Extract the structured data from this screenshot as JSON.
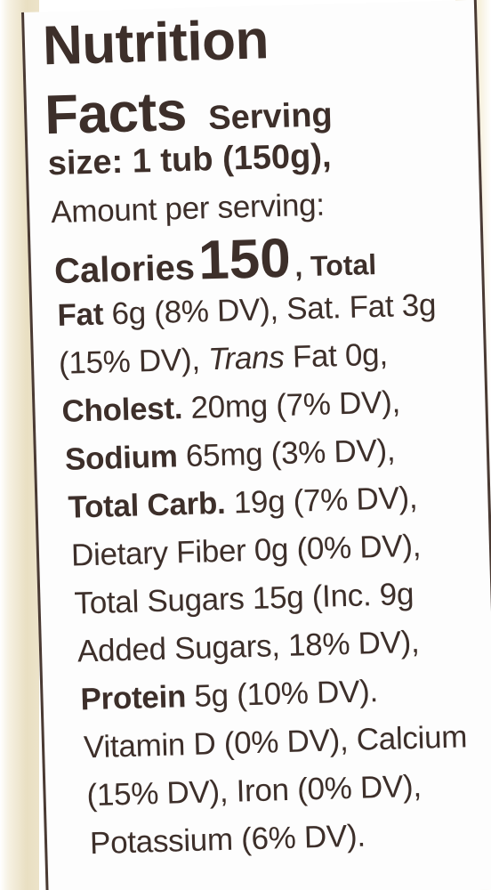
{
  "label": {
    "title_line1": "Nutrition",
    "title_line2": "Facts",
    "serving_lead": "Serving",
    "serving_size": "size: 1 tub (150g),",
    "amount_per_serving": "Amount per serving:",
    "calories_label": "Calories",
    "calories_value": "150",
    "total_lead": ", Total",
    "fat_label": "Fat",
    "fat_text": " 6g (8% DV), Sat. Fat 3g",
    "trans_pre": "(15% DV), ",
    "trans_label": "Trans",
    "trans_text": " Fat 0g,",
    "cholest_label": "Cholest.",
    "cholest_text": " 20mg (7% DV),",
    "sodium_label": "Sodium",
    "sodium_text": " 65mg (3% DV),",
    "carb_label": "Total Carb.",
    "carb_text": " 19g (7% DV),",
    "fiber_text": "Dietary Fiber 0g (0% DV),",
    "sugars_text": "Total Sugars 15g (Inc. 9g",
    "added_text": "Added Sugars, 18% DV),",
    "protein_label": "Protein",
    "protein_text": " 5g (10% DV).",
    "vitd_text": "Vitamin D (0% DV), Calcium",
    "iron_text": "(15% DV), Iron (0% DV),",
    "potassium_text": "Potassium (6% DV)."
  }
}
